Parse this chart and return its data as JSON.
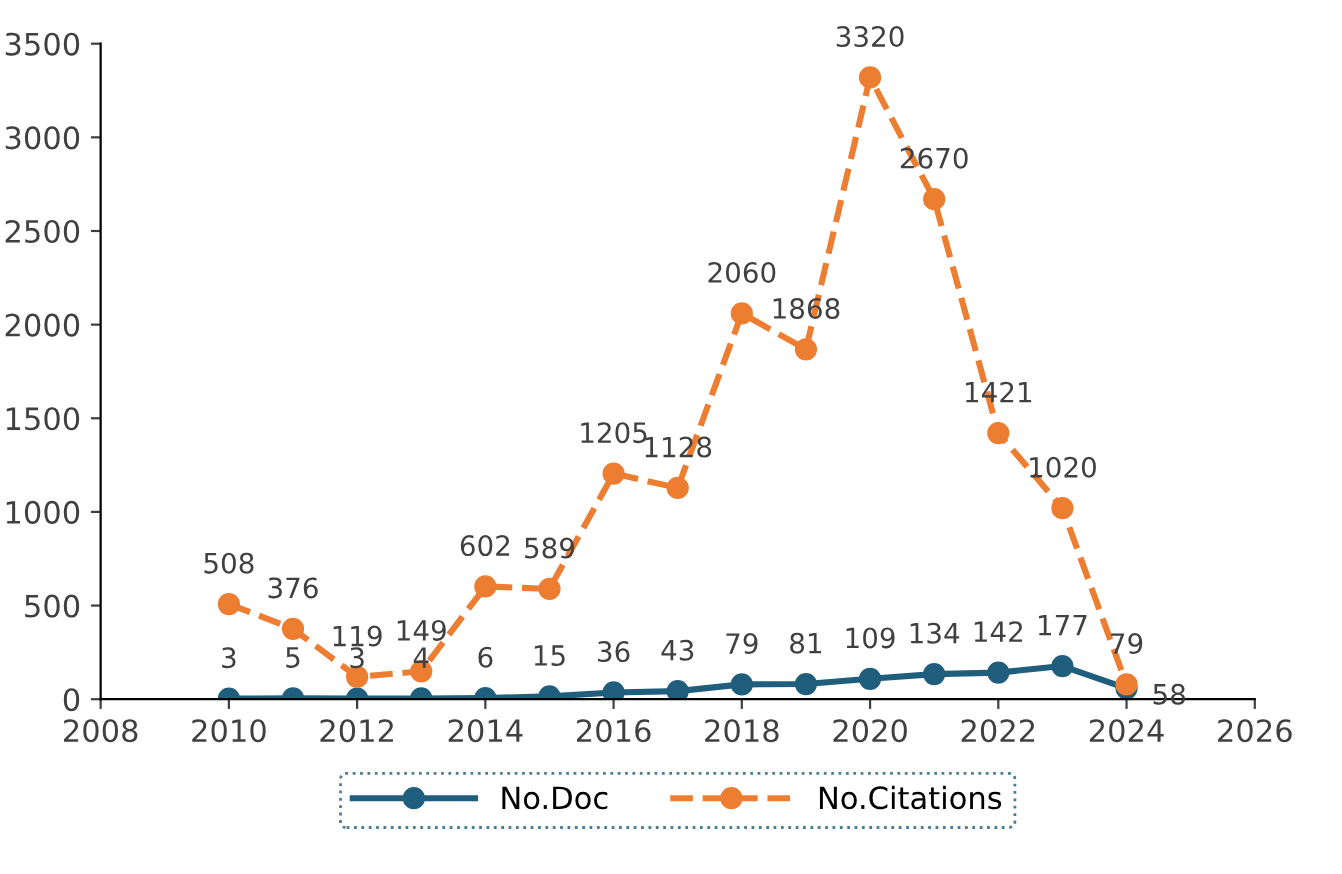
{
  "chart_data": {
    "type": "line",
    "x": [
      2010,
      2011,
      2012,
      2013,
      2014,
      2015,
      2016,
      2017,
      2018,
      2019,
      2020,
      2021,
      2022,
      2023,
      2024
    ],
    "series": [
      {
        "name": "No.Doc",
        "color": "#1f5e7c",
        "values": [
          3,
          5,
          3,
          4,
          6,
          15,
          36,
          43,
          79,
          81,
          109,
          134,
          142,
          177,
          58
        ],
        "line_style": "solid"
      },
      {
        "name": "No.Citations",
        "color": "#ed7d31",
        "values": [
          508,
          376,
          119,
          149,
          602,
          589,
          1205,
          1128,
          2060,
          1868,
          3320,
          2670,
          1421,
          1020,
          79
        ],
        "line_style": "dashed"
      }
    ],
    "xlim": [
      2008,
      2026
    ],
    "xticks": [
      2008,
      2010,
      2012,
      2014,
      2016,
      2018,
      2020,
      2022,
      2024,
      2026
    ],
    "ylim": [
      0,
      3500
    ],
    "yticks": [
      0,
      500,
      1000,
      1500,
      2000,
      2500,
      3000,
      3500
    ],
    "marker": "circle",
    "data_labels": true,
    "legend": "bottom",
    "grid": false
  }
}
